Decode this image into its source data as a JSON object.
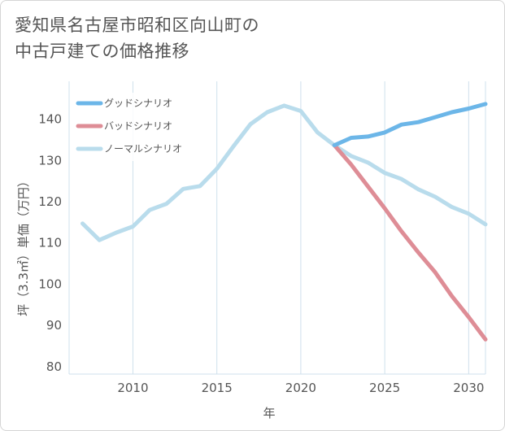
{
  "title_line1": "愛知県名古屋市昭和区向山町の",
  "title_line2": "中古戸建ての価格推移",
  "chart_data": {
    "type": "line",
    "xlabel": "年",
    "ylabel": "坪（3.3㎡）単価（万円）",
    "xlim": [
      2006.2,
      2031
    ],
    "ylim": [
      78,
      149
    ],
    "x_ticks": [
      2010,
      2015,
      2020,
      2025,
      2030
    ],
    "y_ticks": [
      80,
      90,
      100,
      110,
      120,
      130,
      140
    ],
    "grid": "vertical",
    "legend_position": "top-left",
    "series": [
      {
        "name": "グッドシナリオ",
        "color": "#6cb6e8",
        "x": [
          2022,
          2023,
          2024,
          2025,
          2026,
          2027,
          2028,
          2029,
          2030,
          2031
        ],
        "y": [
          133.5,
          135.3,
          135.6,
          136.6,
          138.5,
          139.1,
          140.3,
          141.5,
          142.4,
          143.5
        ]
      },
      {
        "name": "バッドシナリオ",
        "color": "#de8d96",
        "x": [
          2022,
          2023,
          2024,
          2025,
          2026,
          2027,
          2028,
          2029,
          2030,
          2031
        ],
        "y": [
          133.5,
          128.8,
          123.5,
          118.2,
          112.6,
          107.5,
          102.7,
          96.9,
          91.8,
          86.4
        ]
      },
      {
        "name": "ノーマルシナリオ",
        "color": "#b9dcec",
        "x": [
          2007,
          2008,
          2009,
          2010,
          2011,
          2012,
          2013,
          2014,
          2015,
          2016,
          2017,
          2018,
          2019,
          2020,
          2021,
          2022,
          2023,
          2024,
          2025,
          2026,
          2027,
          2028,
          2029,
          2030,
          2031
        ],
        "y": [
          114.5,
          110.5,
          112.3,
          113.8,
          117.8,
          119.3,
          122.9,
          123.6,
          127.8,
          133.3,
          138.6,
          141.5,
          143.1,
          141.8,
          136.6,
          133.5,
          130.9,
          129.3,
          126.8,
          125.3,
          122.8,
          121.0,
          118.5,
          116.9,
          114.3
        ]
      }
    ]
  }
}
